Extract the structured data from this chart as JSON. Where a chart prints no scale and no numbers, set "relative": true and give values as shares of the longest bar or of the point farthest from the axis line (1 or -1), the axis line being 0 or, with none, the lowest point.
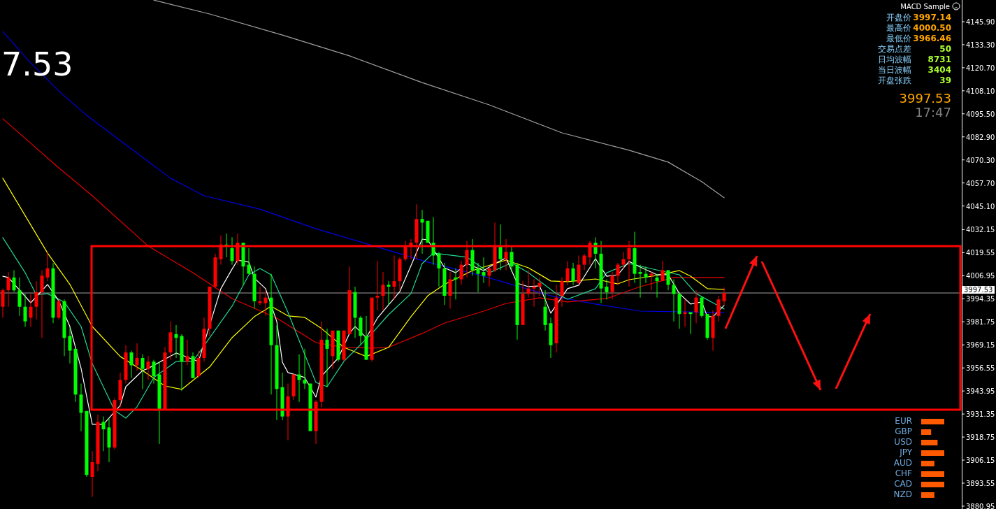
{
  "chart_data": [
    {
      "type": "candlestick",
      "categories": [
        null,
        null,
        null,
        null,
        null,
        null,
        null,
        null,
        null,
        null,
        null,
        null,
        null,
        null,
        null,
        null,
        null,
        null,
        null,
        null,
        null,
        null,
        null,
        null,
        null,
        null,
        null,
        null,
        null,
        null,
        null,
        null,
        null,
        null,
        null,
        null,
        null,
        null,
        null,
        null,
        null,
        null,
        null,
        null,
        null,
        null,
        null,
        null,
        null,
        null,
        null,
        null,
        null,
        null,
        null,
        null,
        null,
        null,
        null,
        null,
        null,
        null,
        null,
        null,
        null,
        null,
        null,
        null,
        null,
        null,
        null,
        null,
        null,
        null,
        null,
        null,
        null,
        null,
        null,
        null,
        null,
        null,
        null,
        null,
        null,
        null,
        null,
        null,
        null,
        null,
        null,
        null,
        null,
        null,
        null,
        null,
        null,
        null,
        null,
        null,
        null,
        null,
        null,
        null,
        null,
        null,
        null,
        null,
        null,
        null,
        null,
        null,
        null,
        null,
        null,
        null,
        null,
        null,
        null,
        null,
        null,
        null,
        null,
        null,
        null,
        null,
        null,
        null,
        null,
        null,
        null,
        null,
        null,
        null,
        null,
        null,
        null,
        null,
        null,
        null,
        null,
        null,
        null,
        null,
        null,
        null,
        null,
        null,
        null,
        null,
        null,
        null,
        null,
        null,
        null,
        null,
        null,
        null,
        null,
        null,
        null,
        null,
        null,
        null,
        null,
        null,
        null,
        null,
        null,
        null,
        null,
        null
      ],
      "ohlc": [
        [
          3990,
          4000,
          3984,
          3999
        ],
        [
          3999,
          4009,
          3990,
          4006
        ],
        [
          4006,
          4010,
          3998,
          3999
        ],
        [
          3999,
          4006,
          3985,
          3990
        ],
        [
          3990,
          3997,
          3979,
          3982
        ],
        [
          3984,
          3997,
          3979,
          3990
        ],
        [
          3990,
          4004,
          3983,
          3998
        ],
        [
          3998,
          4010,
          3973,
          4007
        ],
        [
          4006,
          4020,
          4004,
          4011
        ],
        [
          4011,
          4014,
          3981,
          3984
        ],
        [
          3984,
          3994,
          3983,
          3993
        ],
        [
          3993,
          3994,
          3963,
          3973
        ],
        [
          3974,
          3979,
          3959,
          3966
        ],
        [
          3967,
          3967,
          3938,
          3942
        ],
        [
          3942,
          3948,
          3922,
          3932
        ],
        [
          3933,
          3933,
          3897,
          3898
        ],
        [
          3897,
          3911,
          3886,
          3905
        ],
        [
          3904,
          3931,
          3900,
          3927
        ],
        [
          3927,
          3930,
          3911,
          3923
        ],
        [
          3924,
          3929,
          3905,
          3913
        ],
        [
          3913,
          3940,
          3912,
          3939
        ],
        [
          3939,
          3954,
          3935,
          3950
        ],
        [
          3950,
          3969,
          3948,
          3965
        ],
        [
          3965,
          3966,
          3951,
          3958
        ],
        [
          3958,
          3970,
          3955,
          3962
        ],
        [
          3962,
          3964,
          3945,
          3956
        ],
        [
          3956,
          3963,
          3950,
          3960
        ],
        [
          3960,
          3961,
          3948,
          3952
        ],
        [
          3953,
          3960,
          3915,
          3934
        ],
        [
          3934,
          3968,
          3934,
          3965
        ],
        [
          3965,
          3982,
          3961,
          3976
        ],
        [
          3975,
          3980,
          3962,
          3973
        ],
        [
          3974,
          3975,
          3944,
          3960
        ],
        [
          3960,
          3972,
          3958,
          3963
        ],
        [
          3963,
          3965,
          3951,
          3951
        ],
        [
          3952,
          3966,
          3951,
          3962
        ],
        [
          3962,
          3984,
          3960,
          3978
        ],
        [
          3978,
          4001,
          3974,
          4001
        ],
        [
          4001,
          4019,
          4000,
          4017
        ],
        [
          4016,
          4029,
          4013,
          4024
        ],
        [
          4024,
          4030,
          4017,
          4023
        ],
        [
          4022,
          4028,
          4013,
          4015
        ],
        [
          4015,
          4030,
          4013,
          4025
        ],
        [
          4025,
          4025,
          4002,
          4012
        ],
        [
          4013,
          4022,
          4008,
          4008
        ],
        [
          4008,
          4012,
          3989,
          3993
        ],
        [
          3992,
          4001,
          3991,
          3993
        ],
        [
          3992,
          3999,
          3985,
          3995
        ],
        [
          3995,
          4008,
          3942,
          3969
        ],
        [
          3969,
          3980,
          3928,
          3945
        ],
        [
          3946,
          3954,
          3928,
          3930
        ],
        [
          3930,
          3948,
          3917,
          3941
        ],
        [
          3941,
          3953,
          3939,
          3953
        ],
        [
          3953,
          3964,
          3938,
          3950
        ],
        [
          3950,
          3967,
          3945,
          3948
        ],
        [
          3948,
          3948,
          3922,
          3922
        ],
        [
          3922,
          3939,
          3915,
          3938
        ],
        [
          3938,
          3982,
          3935,
          3972
        ],
        [
          3972,
          3978,
          3946,
          3967
        ],
        [
          3963,
          3977,
          3956,
          3977
        ],
        [
          3977,
          3977,
          3960,
          3961
        ],
        [
          3961,
          3977,
          3960,
          3977
        ],
        [
          3975,
          4012,
          3975,
          3999
        ],
        [
          3998,
          4001,
          3973,
          3984
        ],
        [
          3984,
          3985,
          3969,
          3974
        ],
        [
          3974,
          3985,
          3961,
          3961
        ],
        [
          3961,
          3995,
          3960,
          3995
        ],
        [
          3995,
          4015,
          3988,
          3996
        ],
        [
          3996,
          4009,
          3988,
          4002
        ],
        [
          4002,
          4004,
          3991,
          4001
        ],
        [
          4001,
          4018,
          3994,
          4004
        ],
        [
          4004,
          4017,
          3999,
          4016
        ],
        [
          4016,
          4026,
          4015,
          4023
        ],
        [
          4023,
          4027,
          4016,
          4025
        ],
        [
          4025,
          4046,
          4016,
          4038
        ],
        [
          4038,
          4043,
          4019,
          4036
        ],
        [
          4037,
          4037,
          4025,
          4025
        ],
        [
          4025,
          4039,
          4013,
          4018
        ],
        [
          4019,
          4020,
          4001,
          4011
        ],
        [
          4011,
          4014,
          3991,
          3996
        ],
        [
          3996,
          4009,
          3989,
          4005
        ],
        [
          4006,
          4011,
          3994,
          4005
        ],
        [
          4005,
          4015,
          4002,
          4013
        ],
        [
          4013,
          4026,
          4006,
          4021
        ],
        [
          4021,
          4027,
          4007,
          4010
        ],
        [
          4011,
          4014,
          3998,
          4008
        ],
        [
          4009,
          4017,
          4003,
          4007
        ],
        [
          4007,
          4011,
          4001,
          4011
        ],
        [
          4010,
          4036,
          4009,
          4023
        ],
        [
          4023,
          4035,
          4010,
          4016
        ],
        [
          4016,
          4027,
          4010,
          4020
        ],
        [
          4020,
          4023,
          4009,
          4012
        ],
        [
          4013,
          4014,
          3972,
          3980
        ],
        [
          3980,
          4004,
          3980,
          3997
        ],
        [
          3997,
          4010,
          3995,
          4000
        ],
        [
          4000,
          4005,
          3990,
          4001
        ],
        [
          4001,
          4006,
          3996,
          4003
        ],
        [
          3990,
          3999,
          3977,
          3980
        ],
        [
          3981,
          3984,
          3962,
          3969
        ],
        [
          3970,
          4002,
          3965,
          3995
        ],
        [
          3996,
          4006,
          3990,
          4004
        ],
        [
          4004,
          4015,
          4002,
          4011
        ],
        [
          4011,
          4014,
          4002,
          4004
        ],
        [
          4003,
          4018,
          4002,
          4013
        ],
        [
          4013,
          4019,
          4010,
          4018
        ],
        [
          4017,
          4026,
          4013,
          4025
        ],
        [
          4025,
          4028,
          4011,
          4019
        ],
        [
          4019,
          4026,
          3992,
          4000
        ],
        [
          4001,
          4005,
          3994,
          3998
        ],
        [
          3998,
          4009,
          3994,
          4007
        ],
        [
          4007,
          4014,
          4002,
          4013
        ],
        [
          4013,
          4020,
          4011,
          4016
        ],
        [
          4016,
          4026,
          4001,
          4022
        ],
        [
          4022,
          4031,
          4003,
          4008
        ],
        [
          4009,
          4013,
          3995,
          4008
        ],
        [
          4008,
          4012,
          4003,
          4006
        ],
        [
          4007,
          4009,
          3999,
          4008
        ],
        [
          4006,
          4008,
          3995,
          4004
        ],
        [
          4004,
          4015,
          4004,
          4010
        ],
        [
          4010,
          4010,
          3999,
          4002
        ],
        [
          4002,
          4005,
          3982,
          3997
        ],
        [
          3997,
          3998,
          3978,
          3986
        ],
        [
          3986,
          3994,
          3979,
          3987
        ],
        [
          3987,
          3987,
          3975,
          3986
        ],
        [
          3987,
          3999,
          3981,
          3995
        ],
        [
          3995,
          3996,
          3984,
          3985
        ],
        [
          3986,
          3986,
          3972,
          3973
        ],
        [
          3973,
          3988,
          3966,
          3985
        ],
        [
          3985,
          3996,
          3982,
          3994
        ],
        [
          3993,
          4000.5,
          3991,
          3997.53
        ],
        null,
        null,
        null,
        null,
        null,
        null,
        null,
        null,
        null,
        null,
        null,
        null,
        null,
        null,
        null,
        null,
        null,
        null,
        null,
        null,
        null,
        null,
        null,
        null,
        null,
        null,
        null,
        null,
        null,
        null,
        null,
        null,
        null,
        null,
        null,
        null,
        null,
        null,
        null,
        null,
        null,
        null
      ],
      "series": [
        {
          "type": "line",
          "color": "#a0a0a0",
          "values": [
            null,
            null,
            null,
            null,
            null,
            null,
            null,
            null,
            null,
            null,
            null,
            null,
            null,
            null,
            null,
            null,
            null,
            null,
            null,
            null,
            null,
            null,
            null,
            null,
            null,
            null,
            null,
            4157.7,
            null,
            null,
            null,
            null,
            null,
            null,
            null,
            null,
            null,
            4150.1,
            null,
            null,
            null,
            null,
            null,
            null,
            null,
            null,
            null,
            null,
            null,
            null,
            4138.6,
            null,
            null,
            null,
            null,
            null,
            null,
            null,
            null,
            null,
            null,
            null,
            4127.2,
            null,
            null,
            null,
            null,
            null,
            null,
            null,
            null,
            null,
            null,
            null,
            null,
            4112.6,
            null,
            null,
            null,
            null,
            null,
            null,
            null,
            null,
            null,
            null,
            null,
            4100.4,
            null,
            null,
            null,
            null,
            null,
            null,
            null,
            null,
            null,
            null,
            null,
            null,
            4085.1,
            null,
            null,
            null,
            null,
            null,
            null,
            null,
            null,
            null,
            null,
            null,
            4075.6,
            null,
            null,
            null,
            null,
            null,
            null,
            4069.1,
            null,
            null,
            null,
            null,
            null,
            4058.4,
            null,
            null,
            null,
            4049.6,
            null,
            null,
            null,
            null,
            null,
            null,
            null,
            null,
            null,
            null,
            null,
            null,
            null,
            null,
            null,
            null,
            null,
            null,
            null,
            null,
            null,
            null,
            null,
            null,
            null,
            null,
            null,
            null,
            null,
            null,
            null,
            null,
            null,
            null,
            null,
            null,
            null,
            null,
            null,
            null,
            null,
            null
          ]
        },
        {
          "type": "line",
          "color": "#0000e6",
          "values": [
            4140.5,
            null,
            null,
            null,
            null,
            4123.3,
            null,
            null,
            null,
            null,
            4108.0,
            null,
            null,
            null,
            null,
            4094.7,
            null,
            null,
            null,
            null,
            4083.2,
            null,
            null,
            null,
            null,
            4071.7,
            null,
            null,
            null,
            null,
            4060.3,
            null,
            null,
            null,
            null,
            null,
            4050.7,
            null,
            null,
            null,
            null,
            null,
            null,
            null,
            null,
            null,
            4043.4,
            null,
            null,
            null,
            null,
            null,
            null,
            null,
            null,
            null,
            4032.7,
            null,
            null,
            null,
            null,
            null,
            null,
            null,
            null,
            null,
            4023.6,
            null,
            null,
            null,
            null,
            null,
            null,
            null,
            null,
            null,
            4014.4,
            null,
            null,
            null,
            null,
            null,
            null,
            null,
            null,
            null,
            4006.7,
            null,
            null,
            null,
            null,
            null,
            null,
            null,
            null,
            null,
            null,
            null,
            3996.0,
            null,
            null,
            null,
            null,
            null,
            null,
            null,
            3991.5,
            null,
            null,
            null,
            null,
            null,
            null,
            null,
            3987.6,
            null,
            null,
            null,
            null,
            null,
            null,
            null,
            null,
            null,
            null,
            null,
            null,
            null,
            null,
            3986.9,
            null,
            null,
            null,
            null,
            null,
            null,
            null,
            null,
            null,
            null,
            null,
            null,
            null,
            null,
            null,
            null,
            null,
            null,
            null,
            null,
            null,
            null,
            null,
            null,
            null,
            null,
            null,
            null,
            null,
            null,
            null,
            null,
            null,
            null,
            null,
            null,
            null,
            null,
            null,
            null,
            null,
            null
          ]
        },
        {
          "type": "line",
          "color": "#e60000",
          "values": [
            4092.8,
            null,
            null,
            null,
            null,
            4079.4,
            null,
            null,
            null,
            null,
            4066.0,
            null,
            null,
            null,
            null,
            null,
            4050.7,
            null,
            null,
            null,
            null,
            null,
            null,
            null,
            null,
            null,
            4023.2,
            null,
            null,
            null,
            null,
            null,
            null,
            null,
            4008.6,
            null,
            null,
            null,
            null,
            null,
            null,
            3994.5,
            null,
            null,
            null,
            null,
            null,
            null,
            null,
            3983.8,
            null,
            null,
            null,
            null,
            null,
            null,
            3970.4,
            null,
            null,
            null,
            null,
            3967.8,
            null,
            null,
            null,
            null,
            3967.4,
            null,
            null,
            3967.8,
            null,
            null,
            null,
            null,
            null,
            3975.4,
            null,
            null,
            null,
            3981.1,
            null,
            null,
            null,
            null,
            null,
            null,
            3987.6,
            null,
            null,
            null,
            3991.8,
            null,
            null,
            null,
            null,
            null,
            3994.9,
            null,
            null,
            null,
            null,
            3992.6,
            null,
            null,
            null,
            null,
            null,
            null,
            3994.5,
            null,
            null,
            null,
            null,
            null,
            4001.0,
            null,
            null,
            null,
            null,
            null,
            4006.0,
            null,
            null,
            null,
            null,
            null,
            null,
            null,
            null,
            4006.0,
            null,
            null,
            null,
            null,
            null,
            null,
            null,
            null,
            null,
            null,
            null,
            null,
            null,
            null,
            null,
            null,
            null,
            null,
            null,
            null,
            null,
            null,
            null,
            null,
            null,
            null,
            null,
            null,
            null,
            null,
            null,
            null,
            null,
            null,
            null,
            null,
            null,
            null,
            null,
            null,
            null,
            null
          ]
        },
        {
          "type": "line",
          "color": "#ffff00",
          "values": [
            4060.3,
            null,
            null,
            null,
            null,
            null,
            null,
            null,
            4019.4,
            null,
            null,
            null,
            4002.2,
            null,
            null,
            null,
            3979.2,
            null,
            null,
            null,
            null,
            3962.8,
            null,
            null,
            null,
            3955.1,
            null,
            null,
            null,
            3946.7,
            null,
            null,
            3944.8,
            null,
            null,
            null,
            null,
            3957.1,
            null,
            null,
            null,
            3973.1,
            null,
            null,
            null,
            3984.6,
            null,
            null,
            3990.3,
            null,
            null,
            3985.0,
            null,
            null,
            3984.2,
            null,
            null,
            3978.1,
            null,
            null,
            null,
            3967.8,
            null,
            null,
            null,
            3962.8,
            null,
            null,
            null,
            3967.8,
            null,
            null,
            null,
            3984.6,
            null,
            null,
            3996.0,
            null,
            null,
            4002.2,
            null,
            null,
            null,
            null,
            4009.8,
            null,
            null,
            null,
            null,
            null,
            4015.5,
            null,
            null,
            null,
            4011.3,
            null,
            null,
            null,
            4004.1,
            null,
            null,
            4003.7,
            null,
            null,
            null,
            null,
            4005.2,
            null,
            null,
            null,
            4002.5,
            null,
            4004.8,
            null,
            null,
            null,
            null,
            4007.1,
            null,
            null,
            null,
            4009.8,
            null,
            4006.7,
            null,
            null,
            3999.9,
            null,
            null,
            3999.5,
            null,
            null,
            null,
            null,
            null,
            null,
            null,
            null,
            null,
            null,
            null,
            null,
            null,
            null,
            null,
            null,
            null,
            null,
            null,
            null,
            null,
            null,
            null,
            null,
            null,
            null,
            null,
            null,
            null,
            null,
            null,
            null,
            null,
            null,
            null,
            null,
            null,
            null,
            null,
            null,
            null,
            null
          ]
        },
        {
          "type": "line",
          "color": "#20d890",
          "values": [
            4027.8,
            null,
            null,
            null,
            4008.6,
            null,
            3996.4,
            null,
            3997.2,
            null,
            null,
            3992.6,
            null,
            null,
            3979.2,
            null,
            3958.9,
            null,
            null,
            null,
            3933.3,
            null,
            3929.1,
            null,
            3935.3,
            null,
            null,
            3951.3,
            null,
            null,
            null,
            3960.1,
            null,
            null,
            3960.1,
            null,
            null,
            null,
            null,
            null,
            null,
            3990.3,
            null,
            null,
            4007.5,
            null,
            4010.9,
            null,
            4007.5,
            null,
            null,
            3986.9,
            null,
            null,
            3963.9,
            null,
            3948.6,
            null,
            3946.3,
            null,
            null,
            3960.1,
            null,
            null,
            null,
            null,
            3975.4,
            null,
            null,
            3985.7,
            null,
            null,
            null,
            3997.2,
            null,
            4013.6,
            null,
            4019.4,
            null,
            null,
            null,
            null,
            null,
            4017.1,
            null,
            null,
            null,
            4008.6,
            null,
            null,
            null,
            4014.0,
            null,
            null,
            4008.6,
            null,
            null,
            null,
            null,
            3997.2,
            null,
            3994.1,
            null,
            null,
            null,
            null,
            3999.9,
            null,
            4008.6,
            null,
            null,
            null,
            4013.6,
            null,
            null,
            null,
            null,
            null,
            4009.4,
            null,
            null,
            4007.5,
            null,
            null,
            3997.2,
            null,
            null,
            null,
            null,
            3988.8,
            null,
            null,
            null,
            null,
            null,
            null,
            null,
            null,
            null,
            null,
            null,
            null,
            null,
            null,
            null,
            null,
            null,
            null,
            null,
            null,
            null,
            null,
            null,
            null,
            null,
            null,
            null,
            null,
            null,
            null,
            null,
            null,
            null,
            null,
            null,
            null,
            null,
            null,
            null,
            null,
            null,
            null
          ]
        },
        {
          "type": "line",
          "color": "#ffffff",
          "values": [
            4006.7,
            4006.0,
            null,
            null,
            null,
            3992.2,
            null,
            null,
            4002.2,
            null,
            3993.3,
            null,
            3979.2,
            null,
            3956.3,
            null,
            3925.7,
            null,
            3925.7,
            null,
            null,
            3936.0,
            3946.3,
            null,
            null,
            3955.1,
            3956.3,
            null,
            null,
            null,
            null,
            3964.7,
            null,
            null,
            null,
            3960.1,
            null,
            null,
            null,
            3999.9,
            null,
            4010.6,
            4015.5,
            null,
            4014.4,
            4005.6,
            null,
            3999.9,
            null,
            3981.9,
            3959.7,
            3954.0,
            null,
            null,
            3951.3,
            null,
            3940.6,
            3952.1,
            null,
            null,
            3962.0,
            null,
            3975.4,
            3979.2,
            null,
            3973.1,
            null,
            3983.8,
            null,
            null,
            null,
            3998.3,
            null,
            4012.5,
            null,
            4027.0,
            4026.6,
            null,
            null,
            4011.3,
            null,
            4008.6,
            null,
            4013.6,
            null,
            null,
            4009.8,
            null,
            4013.6,
            null,
            4016.7,
            null,
            4002.9,
            null,
            4001.0,
            null,
            4001.4,
            null,
            3986.5,
            null,
            null,
            3999.9,
            null,
            4001.8,
            null,
            null,
            4016.3,
            null,
            4006.7,
            null,
            4007.5,
            null,
            4014.8,
            null,
            4011.7,
            null,
            null,
            4007.5,
            null,
            4007.5,
            null,
            3997.2,
            null,
            3991.5,
            null,
            3992.6,
            3984.6,
            3984.6,
            null,
            3990.7,
            null,
            null,
            null,
            null,
            null,
            null,
            null,
            null,
            null,
            null,
            null,
            null,
            null,
            null,
            null,
            null,
            null,
            null,
            null,
            null,
            null,
            null,
            null,
            null,
            null,
            null,
            null,
            null,
            null,
            null,
            null,
            null,
            null,
            null,
            null,
            null,
            null,
            null,
            null,
            null,
            null,
            null
          ]
        }
      ],
      "ylim": [
        3879.4,
        4157.75
      ],
      "yticks": [
        {
          "value": 4145.9,
          "label": "4145.90"
        },
        {
          "value": 4133.3,
          "label": "4133.30"
        },
        {
          "value": 4120.7,
          "label": "4120.70"
        },
        {
          "value": 4108.1,
          "label": "4108.10"
        },
        {
          "value": 4095.5,
          "label": "4095.50"
        },
        {
          "value": 4082.9,
          "label": "4082.90"
        },
        {
          "value": 4070.3,
          "label": "4070.30"
        },
        {
          "value": 4057.7,
          "label": "4057.70"
        },
        {
          "value": 4045.1,
          "label": "4045.10"
        },
        {
          "value": 4032.15,
          "label": "4032.15"
        },
        {
          "value": 4019.55,
          "label": "4019.55"
        },
        {
          "value": 4006.95,
          "label": "4006.95"
        },
        {
          "value": 3994.35,
          "label": "3994.35"
        },
        {
          "value": 3981.75,
          "label": "3981.75"
        },
        {
          "value": 3969.15,
          "label": "3969.15"
        },
        {
          "value": 3956.55,
          "label": "3956.55"
        },
        {
          "value": 3943.95,
          "label": "3943.95"
        },
        {
          "value": 3931.35,
          "label": "3931.35"
        },
        {
          "value": 3918.75,
          "label": "3918.75"
        },
        {
          "value": 3906.15,
          "label": "3906.15"
        },
        {
          "value": 3893.55,
          "label": "3893.55"
        },
        {
          "value": 3880.95,
          "label": "3880.95"
        }
      ],
      "tick_labels": "y",
      "ref_lines": [
        {
          "axis": "y",
          "value": 3997.53,
          "label": "3997.53",
          "color": "#a0a0a0"
        }
      ],
      "annotations": [
        "7.53",
        "MACD Sample",
        "开盘价",
        "3997.14",
        "最高价",
        "4000.50",
        "最低价",
        "3966.46",
        "交易点差",
        "50",
        "日均波幅",
        "8731",
        "当日波幅",
        "3404",
        "开盘张跌",
        "39",
        "3997.53",
        "17:47"
      ]
    },
    {
      "type": "bar",
      "orientation": "horizontal",
      "relative": true,
      "color": "#ff5a00",
      "categories": [
        "EUR",
        "GBP",
        "USD",
        "JPY",
        "AUD",
        "CHF",
        "CAD",
        "NZD"
      ],
      "values": [
        1,
        0.43,
        0.71,
        1,
        0.57,
        1,
        1,
        0.57
      ]
    }
  ]
}
